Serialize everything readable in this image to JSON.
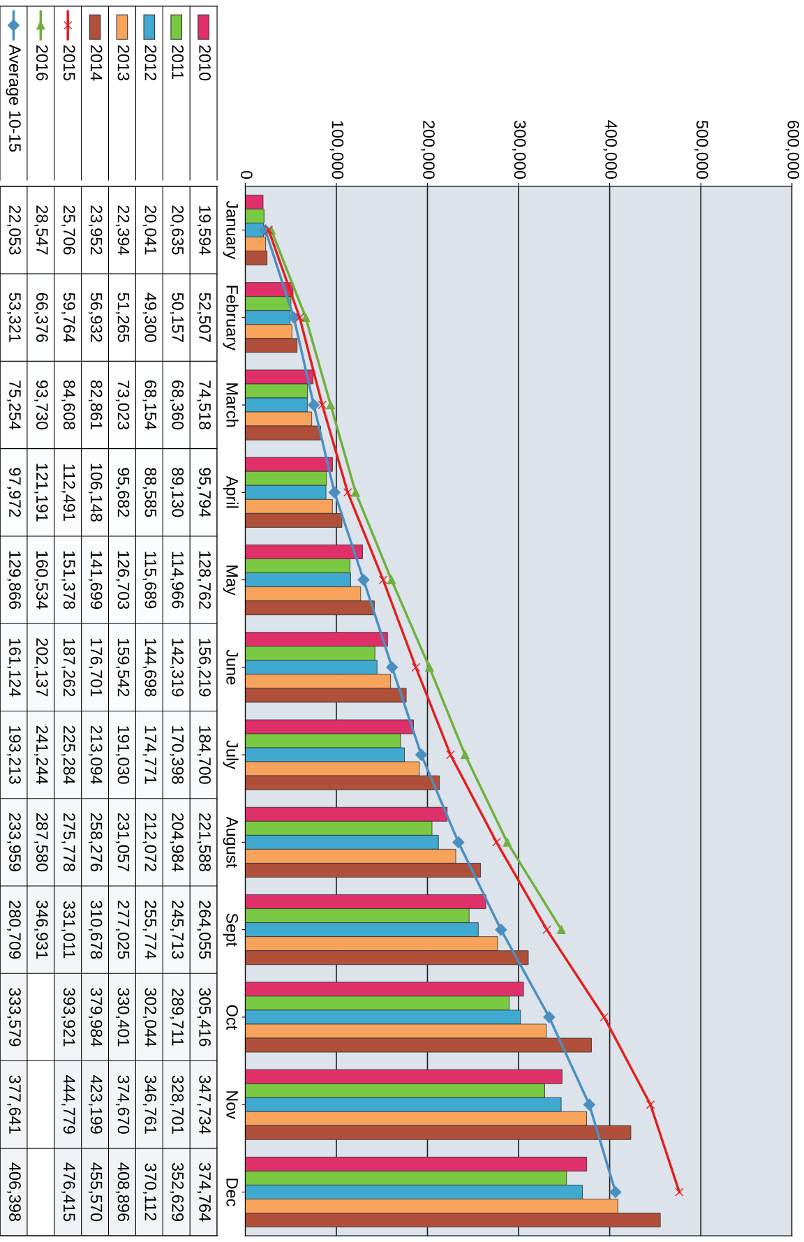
{
  "chart_data": [
    {
      "type": "bar",
      "orientation": "horizontal",
      "categories": [
        "January",
        "February",
        "March",
        "April",
        "May",
        "June",
        "July",
        "August",
        "Sept",
        "Oct",
        "Nov",
        "Dec"
      ],
      "xlim": [
        0,
        600000
      ],
      "xticks": [
        {
          "value": 0,
          "label": "0"
        },
        {
          "value": 100000,
          "label": "100,000"
        },
        {
          "value": 200000,
          "label": "200,000"
        },
        {
          "value": 300000,
          "label": "300,000"
        },
        {
          "value": 400000,
          "label": "400,000"
        },
        {
          "value": 500000,
          "label": "500,000"
        },
        {
          "value": 600000,
          "label": "600,000"
        }
      ],
      "grid": "x",
      "legend": "left",
      "series": [
        {
          "name": "2010",
          "color": "#e0306a",
          "values": [
            19594,
            52507,
            74518,
            95794,
            128762,
            156219,
            184700,
            221588,
            264055,
            305416,
            347734,
            374764
          ]
        },
        {
          "name": "2011",
          "color": "#7ac943",
          "values": [
            20635,
            50157,
            68360,
            89130,
            114966,
            142319,
            170398,
            204984,
            245713,
            289711,
            328701,
            352629
          ]
        },
        {
          "name": "2012",
          "color": "#3fa9d0",
          "values": [
            20041,
            49300,
            68154,
            88585,
            115689,
            144698,
            174771,
            212072,
            255774,
            302044,
            346761,
            370112
          ]
        },
        {
          "name": "2013",
          "color": "#f7a35c",
          "values": [
            22394,
            51265,
            73023,
            95682,
            126703,
            159542,
            191030,
            231057,
            277025,
            330401,
            374670,
            408896
          ]
        },
        {
          "name": "2014",
          "color": "#b0503a",
          "values": [
            23952,
            56932,
            82861,
            106148,
            141699,
            176701,
            213094,
            258276,
            310678,
            379984,
            423199,
            455570
          ]
        },
        {
          "name": "2015",
          "type": "line",
          "marker": "cross",
          "color": "#e02020",
          "values": [
            25706,
            59764,
            84608,
            112491,
            151378,
            187262,
            225284,
            275778,
            331011,
            393921,
            444779,
            476415
          ]
        },
        {
          "name": "2016",
          "type": "line",
          "marker": "triangle",
          "color": "#6fb03c",
          "values": [
            28547,
            66376,
            93730,
            121191,
            160534,
            202137,
            241244,
            287580,
            346931,
            null,
            null,
            null
          ]
        },
        {
          "name": "Average 10-15",
          "type": "line",
          "marker": "diamond",
          "color": "#4a8fc0",
          "values": [
            22053,
            53321,
            75254,
            97972,
            129866,
            161124,
            193213,
            233959,
            280709,
            333579,
            377641,
            406398
          ]
        }
      ]
    },
    {
      "type": "heatmap",
      "categories": [
        null,
        null,
        null,
        null,
        null,
        null,
        null,
        null
      ],
      "y_categories": [
        null,
        null,
        null,
        null,
        null,
        null,
        null,
        null,
        null,
        null,
        null,
        null
      ],
      "grid": true,
      "cells": [
        [
          22053,
          28547,
          25706,
          23952,
          22394,
          20041,
          20635,
          19594
        ],
        [
          53321,
          66376,
          59764,
          56932,
          51265,
          49300,
          50157,
          52507
        ],
        [
          75254,
          93730,
          84608,
          82861,
          73023,
          68154,
          68360,
          74518
        ],
        [
          97972,
          121191,
          112491,
          106148,
          95682,
          88585,
          89130,
          95794
        ],
        [
          129866,
          160534,
          151378,
          141699,
          126703,
          115689,
          114966,
          128762
        ],
        [
          161124,
          202137,
          187262,
          176701,
          159542,
          144698,
          142319,
          156219
        ],
        [
          193213,
          241244,
          225284,
          213094,
          191030,
          174771,
          170398,
          184700
        ],
        [
          233959,
          287580,
          275778,
          258276,
          231057,
          212072,
          204984,
          221588
        ],
        [
          280709,
          346931,
          331011,
          310678,
          277025,
          255774,
          245713,
          264055
        ],
        [
          333579,
          null,
          393921,
          379984,
          330401,
          302044,
          289711,
          305416
        ],
        [
          377641,
          null,
          444779,
          423199,
          374670,
          346761,
          328701,
          347734
        ],
        [
          406398,
          null,
          476415,
          455570,
          408896,
          370112,
          352629,
          374764
        ]
      ],
      "cell_labels": [
        [
          "22,053",
          "28,547",
          "25,706",
          "23,952",
          "22,394",
          "20,041",
          "20,635",
          "19,594"
        ],
        [
          "53,321",
          "66,376",
          "59,764",
          "56,932",
          "51,265",
          "49,300",
          "50,157",
          "52,507"
        ],
        [
          "75,254",
          "93,730",
          "84,608",
          "82,861",
          "73,023",
          "68,154",
          "68,360",
          "74,518"
        ],
        [
          "97,972",
          "121,191",
          "112,491",
          "106,148",
          "95,682",
          "88,585",
          "89,130",
          "95,794"
        ],
        [
          "129,866",
          "160,534",
          "151,378",
          "141,699",
          "126,703",
          "115,689",
          "114,966",
          "128,762"
        ],
        [
          "161,124",
          "202,137",
          "187,262",
          "176,701",
          "159,542",
          "144,698",
          "142,319",
          "156,219"
        ],
        [
          "193,213",
          "241,244",
          "225,284",
          "213,094",
          "191,030",
          "174,771",
          "170,398",
          "184,700"
        ],
        [
          "233,959",
          "287,580",
          "275,778",
          "258,276",
          "231,057",
          "212,072",
          "204,984",
          "221,588"
        ],
        [
          "280,709",
          "346,931",
          "331,011",
          "310,678",
          "277,025",
          "255,774",
          "245,713",
          "264,055"
        ],
        [
          "333,579",
          null,
          "393,921",
          "379,984",
          "330,401",
          "302,044",
          "289,711",
          "305,416"
        ],
        [
          "377,641",
          null,
          "444,779",
          "423,199",
          "374,670",
          "346,761",
          "328,701",
          "347,734"
        ],
        [
          "406,398",
          null,
          "476,415",
          "455,570",
          "408,896",
          "370,112",
          "352,629",
          "374,764"
        ]
      ]
    }
  ]
}
